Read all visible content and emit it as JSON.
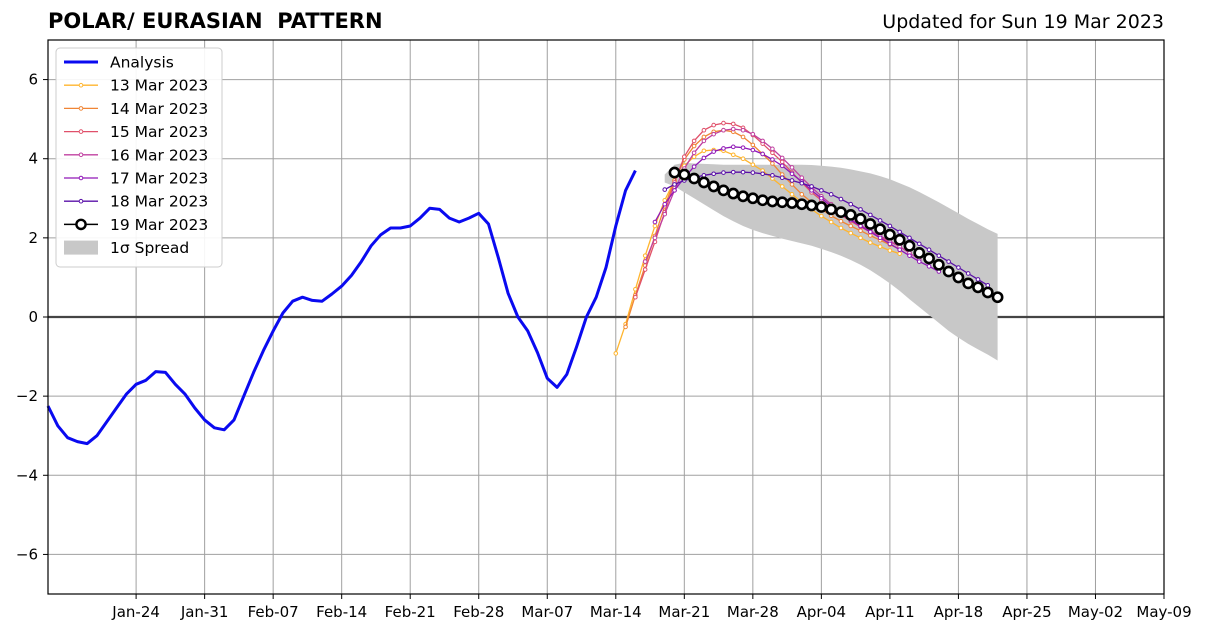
{
  "header": {
    "title": "POLAR/ EURASIAN  PATTERN",
    "updated": "Updated for Sun 19 Mar 2023"
  },
  "chart_data": {
    "type": "line",
    "title": "POLAR/ EURASIAN  PATTERN",
    "xlabel": "",
    "ylabel": "",
    "x_unit": "date",
    "xlim": [
      "2023-01-15",
      "2023-05-09"
    ],
    "ylim": [
      -7,
      7
    ],
    "x_ticks": [
      "Jan-24",
      "Jan-31",
      "Feb-07",
      "Feb-14",
      "Feb-21",
      "Feb-28",
      "Mar-07",
      "Mar-14",
      "Mar-21",
      "Mar-28",
      "Apr-04",
      "Apr-11",
      "Apr-18",
      "Apr-25",
      "May-02",
      "May-09"
    ],
    "y_ticks": [
      -6,
      -4,
      -2,
      0,
      2,
      4,
      6
    ],
    "y_tick_labels": [
      "−6",
      "−4",
      "−2",
      "0",
      "2",
      "4",
      "6"
    ],
    "grid": true,
    "zero_line": true,
    "legend_position": "top-left",
    "legend": [
      "Analysis",
      "13 Mar 2023",
      "14 Mar 2023",
      "15 Mar 2023",
      "16 Mar 2023",
      "17 Mar 2023",
      "18 Mar 2023",
      "19 Mar 2023",
      "1σ Spread"
    ],
    "analysis": {
      "name": "Analysis",
      "color": "#0a0af0",
      "start": "2023-01-15",
      "values": [
        -2.25,
        -2.75,
        -3.05,
        -3.15,
        -3.2,
        -3.0,
        -2.65,
        -2.3,
        -1.95,
        -1.7,
        -1.6,
        -1.38,
        -1.4,
        -1.7,
        -1.95,
        -2.3,
        -2.6,
        -2.8,
        -2.85,
        -2.6,
        -2.0,
        -1.4,
        -0.85,
        -0.35,
        0.1,
        0.4,
        0.5,
        0.42,
        0.4,
        0.58,
        0.78,
        1.05,
        1.4,
        1.8,
        2.08,
        2.25,
        2.25,
        2.3,
        2.5,
        2.75,
        2.72,
        2.5,
        2.4,
        2.5,
        2.62,
        2.35,
        1.5,
        0.6,
        0.0,
        -0.35,
        -0.9,
        -1.55,
        -1.78,
        -1.45,
        -0.75,
        0.0,
        0.5,
        1.25,
        2.3,
        3.2,
        3.7
      ]
    },
    "forecasts": [
      {
        "name": "13 Mar 2023",
        "color": "#ffb52e",
        "start": "2023-03-14",
        "step_days": 1,
        "values": [
          -0.92,
          -0.18,
          0.7,
          1.55,
          2.3,
          2.95,
          3.45,
          3.82,
          4.05,
          4.2,
          4.22,
          4.2,
          4.1,
          4.0,
          3.85,
          3.7,
          3.5,
          3.3,
          3.1,
          2.9,
          2.72,
          2.55,
          2.4,
          2.25,
          2.12,
          2.0,
          1.88,
          1.78,
          1.68,
          1.6
        ]
      },
      {
        "name": "14 Mar 2023",
        "color": "#f08535",
        "start": "2023-03-15",
        "step_days": 1,
        "values": [
          -0.25,
          0.55,
          1.3,
          2.05,
          2.8,
          3.45,
          3.98,
          4.32,
          4.55,
          4.68,
          4.72,
          4.68,
          4.55,
          4.35,
          4.12,
          3.88,
          3.6,
          3.35,
          3.1,
          2.9,
          2.72,
          2.56,
          2.42,
          2.3,
          2.18,
          2.06,
          1.94,
          1.83,
          1.72
        ]
      },
      {
        "name": "15 Mar 2023",
        "color": "#e0506a",
        "start": "2023-03-16",
        "step_days": 1,
        "values": [
          0.5,
          1.2,
          1.9,
          2.65,
          3.4,
          4.05,
          4.45,
          4.72,
          4.85,
          4.9,
          4.88,
          4.78,
          4.6,
          4.38,
          4.15,
          3.92,
          3.65,
          3.4,
          3.15,
          2.95,
          2.75,
          2.58,
          2.42,
          2.28,
          2.15,
          2.02,
          1.9,
          1.78,
          1.62
        ]
      },
      {
        "name": "16 Mar 2023",
        "color": "#c040a0",
        "start": "2023-03-17",
        "step_days": 1,
        "values": [
          1.4,
          2.0,
          2.6,
          3.2,
          3.75,
          4.15,
          4.45,
          4.62,
          4.72,
          4.75,
          4.72,
          4.62,
          4.45,
          4.25,
          4.02,
          3.78,
          3.52,
          3.28,
          3.05,
          2.85,
          2.65,
          2.48,
          2.32,
          2.18,
          2.05,
          1.92,
          1.78,
          1.62,
          1.45
        ]
      },
      {
        "name": "17 Mar 2023",
        "color": "#9018b8",
        "start": "2023-03-18",
        "step_days": 1,
        "values": [
          2.4,
          2.85,
          3.2,
          3.52,
          3.8,
          4.02,
          4.18,
          4.26,
          4.3,
          4.28,
          4.22,
          4.12,
          3.98,
          3.82,
          3.62,
          3.42,
          3.2,
          3.0,
          2.8,
          2.6,
          2.45,
          2.3,
          2.15,
          2.0,
          1.85,
          1.7,
          1.55,
          1.4,
          1.28,
          1.15
        ]
      },
      {
        "name": "18 Mar 2023",
        "color": "#5a10a8",
        "start": "2023-03-19",
        "step_days": 1,
        "values": [
          3.22,
          3.35,
          3.45,
          3.52,
          3.58,
          3.62,
          3.65,
          3.66,
          3.66,
          3.65,
          3.62,
          3.58,
          3.52,
          3.45,
          3.38,
          3.3,
          3.2,
          3.1,
          2.98,
          2.85,
          2.72,
          2.58,
          2.44,
          2.3,
          2.15,
          2.0,
          1.85,
          1.7,
          1.55,
          1.4,
          1.25,
          1.1,
          0.95,
          0.8
        ]
      },
      {
        "name": "19 Mar 2023",
        "color": "#000000",
        "start": "2023-03-20",
        "step_days": 1,
        "values": [
          3.65,
          3.6,
          3.5,
          3.4,
          3.3,
          3.2,
          3.12,
          3.05,
          3.0,
          2.95,
          2.92,
          2.9,
          2.88,
          2.85,
          2.82,
          2.78,
          2.72,
          2.65,
          2.58,
          2.48,
          2.35,
          2.22,
          2.08,
          1.95,
          1.8,
          1.62,
          1.48,
          1.32,
          1.15,
          1.0,
          0.85,
          0.75,
          0.62,
          0.5
        ]
      }
    ],
    "spread": {
      "name": "1σ Spread",
      "color": "#c8c8c8",
      "start": "2023-03-19",
      "step_days": 1,
      "upper": [
        3.6,
        3.85,
        3.9,
        3.88,
        3.87,
        3.86,
        3.85,
        3.85,
        3.85,
        3.85,
        3.85,
        3.85,
        3.85,
        3.85,
        3.85,
        3.84,
        3.82,
        3.8,
        3.77,
        3.73,
        3.68,
        3.63,
        3.56,
        3.48,
        3.38,
        3.28,
        3.16,
        3.03,
        2.9,
        2.76,
        2.62,
        2.48,
        2.35,
        2.22,
        2.1
      ],
      "lower": [
        3.4,
        3.3,
        3.15,
        3.0,
        2.85,
        2.7,
        2.55,
        2.42,
        2.3,
        2.2,
        2.12,
        2.05,
        1.98,
        1.92,
        1.86,
        1.8,
        1.72,
        1.64,
        1.55,
        1.44,
        1.32,
        1.18,
        1.02,
        0.85,
        0.66,
        0.45,
        0.25,
        0.05,
        -0.15,
        -0.35,
        -0.52,
        -0.68,
        -0.82,
        -0.95,
        -1.1
      ]
    }
  }
}
